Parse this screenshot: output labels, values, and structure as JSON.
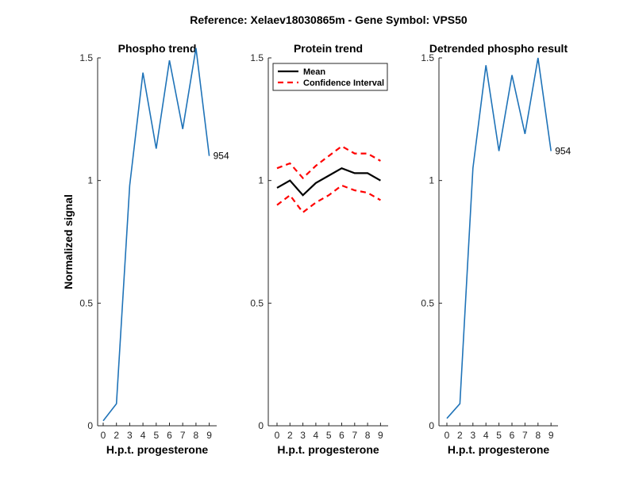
{
  "figure": {
    "suptitle": "Reference:  Xelaev18030865m - Gene Symbol:  VPS50",
    "colors": {
      "phospho": "#1f73b8",
      "mean": "#000000",
      "ci": "#ff0000"
    }
  },
  "chart_data": [
    {
      "type": "line",
      "title": "Phospho trend",
      "xlabel": "H.p.t. progesterone",
      "ylabel": "Normalized signal",
      "xticks": [
        "0",
        "2",
        "3",
        "4",
        "5",
        "6",
        "7",
        "8",
        "9"
      ],
      "yticks": [
        "0",
        "0.5",
        "1",
        "1.5"
      ],
      "ylim": [
        0,
        1.5
      ],
      "series": [
        {
          "values": [
            0.02,
            0.09,
            0.98,
            1.44,
            1.13,
            1.49,
            1.21,
            1.54,
            1.1
          ]
        }
      ],
      "annotation": "954"
    },
    {
      "type": "line",
      "title": "Protein trend",
      "xlabel": "H.p.t. progesterone",
      "xticks": [
        "0",
        "2",
        "3",
        "4",
        "5",
        "6",
        "7",
        "8",
        "9"
      ],
      "yticks": [
        "0",
        "0.5",
        "1",
        "1.5"
      ],
      "ylim": [
        0,
        1.5
      ],
      "legend": {
        "position": "top-left",
        "entries": [
          "Mean",
          "Confidence Interval"
        ]
      },
      "series": [
        {
          "name": "Mean",
          "values": [
            0.97,
            1.0,
            0.94,
            0.99,
            1.02,
            1.05,
            1.03,
            1.03,
            1.0
          ]
        },
        {
          "name": "Confidence Interval",
          "values": [
            1.05,
            1.07,
            1.01,
            1.06,
            1.1,
            1.14,
            1.11,
            1.11,
            1.08
          ]
        },
        {
          "name": "Confidence Interval",
          "values": [
            0.9,
            0.94,
            0.87,
            0.91,
            0.94,
            0.98,
            0.96,
            0.95,
            0.92
          ]
        }
      ]
    },
    {
      "type": "line",
      "title": "Detrended phospho result",
      "xlabel": "H.p.t. progesterone",
      "xticks": [
        "0",
        "2",
        "3",
        "4",
        "5",
        "6",
        "7",
        "8",
        "9"
      ],
      "yticks": [
        "0",
        "0.5",
        "1",
        "1.5"
      ],
      "ylim": [
        0,
        1.5
      ],
      "series": [
        {
          "values": [
            0.03,
            0.09,
            1.05,
            1.47,
            1.12,
            1.43,
            1.19,
            1.5,
            1.12
          ]
        }
      ],
      "annotation": "954"
    }
  ]
}
